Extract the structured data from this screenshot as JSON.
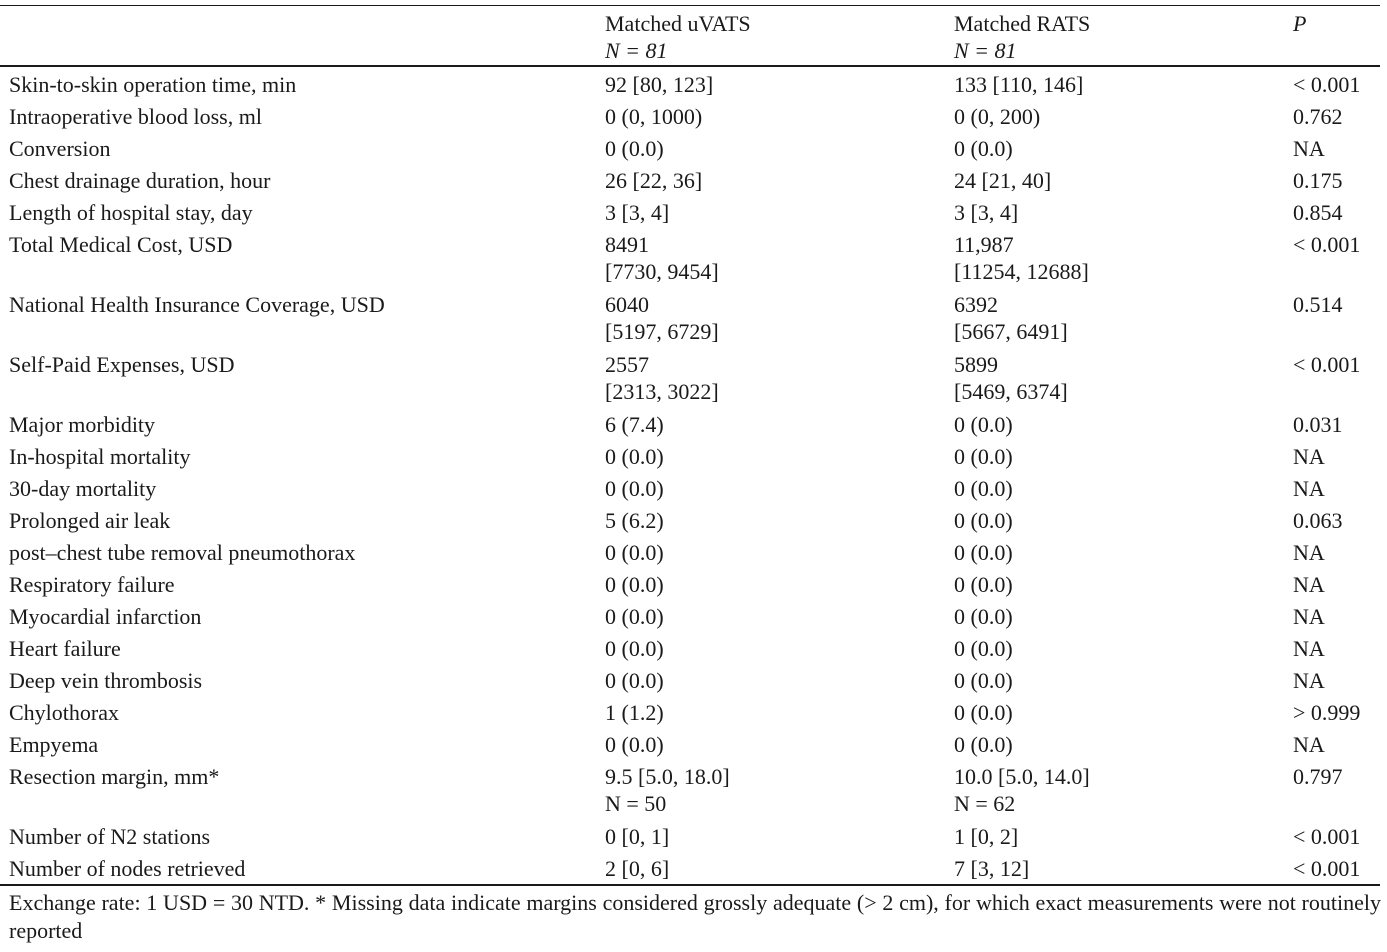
{
  "table": {
    "header": {
      "col2_title": "Matched uVATS",
      "col2_n": "N = 81",
      "col3_title": "Matched RATS",
      "col3_n": "N = 81",
      "col4_title": "P"
    },
    "rows": [
      {
        "label": "Skin-to-skin operation time, min",
        "v1": [
          "92 [80, 123]"
        ],
        "v2": [
          "133 [110, 146]"
        ],
        "p": "< 0.001"
      },
      {
        "label": "Intraoperative blood loss, ml",
        "v1": [
          "0 (0, 1000)"
        ],
        "v2": [
          "0 (0, 200)"
        ],
        "p": "0.762"
      },
      {
        "label": "Conversion",
        "v1": [
          "0 (0.0)"
        ],
        "v2": [
          "0 (0.0)"
        ],
        "p": "NA"
      },
      {
        "label": "Chest drainage duration, hour",
        "v1": [
          "26 [22, 36]"
        ],
        "v2": [
          "24 [21, 40]"
        ],
        "p": "0.175"
      },
      {
        "label": "Length of hospital stay, day",
        "v1": [
          "3 [3, 4]"
        ],
        "v2": [
          "3 [3, 4]"
        ],
        "p": "0.854"
      },
      {
        "label": "Total Medical Cost, USD",
        "v1": [
          "8491",
          "[7730, 9454]"
        ],
        "v2": [
          "11,987",
          "[11254, 12688]"
        ],
        "p": "< 0.001"
      },
      {
        "label": "National Health Insurance Coverage, USD",
        "v1": [
          "6040",
          "[5197, 6729]"
        ],
        "v2": [
          "6392",
          "[5667, 6491]"
        ],
        "p": "0.514"
      },
      {
        "label": "Self-Paid Expenses, USD",
        "v1": [
          "2557",
          "[2313, 3022]"
        ],
        "v2": [
          "5899",
          "[5469, 6374]"
        ],
        "p": "< 0.001"
      },
      {
        "label": "Major morbidity",
        "v1": [
          "6 (7.4)"
        ],
        "v2": [
          "0 (0.0)"
        ],
        "p": "0.031"
      },
      {
        "label": "In-hospital mortality",
        "v1": [
          "0 (0.0)"
        ],
        "v2": [
          "0 (0.0)"
        ],
        "p": "NA"
      },
      {
        "label": "30-day mortality",
        "v1": [
          "0 (0.0)"
        ],
        "v2": [
          "0 (0.0)"
        ],
        "p": "NA"
      },
      {
        "label": "Prolonged air leak",
        "v1": [
          "5 (6.2)"
        ],
        "v2": [
          "0 (0.0)"
        ],
        "p": "0.063"
      },
      {
        "label": "post–chest tube removal pneumothorax",
        "v1": [
          "0 (0.0)"
        ],
        "v2": [
          "0 (0.0)"
        ],
        "p": "NA"
      },
      {
        "label": "Respiratory failure",
        "v1": [
          "0 (0.0)"
        ],
        "v2": [
          "0 (0.0)"
        ],
        "p": "NA"
      },
      {
        "label": "Myocardial infarction",
        "v1": [
          "0 (0.0)"
        ],
        "v2": [
          "0 (0.0)"
        ],
        "p": "NA"
      },
      {
        "label": "Heart failure",
        "v1": [
          "0 (0.0)"
        ],
        "v2": [
          "0 (0.0)"
        ],
        "p": "NA"
      },
      {
        "label": "Deep vein thrombosis",
        "v1": [
          "0 (0.0)"
        ],
        "v2": [
          "0 (0.0)"
        ],
        "p": "NA"
      },
      {
        "label": "Chylothorax",
        "v1": [
          "1 (1.2)"
        ],
        "v2": [
          "0 (0.0)"
        ],
        "p": "> 0.999"
      },
      {
        "label": "Empyema",
        "v1": [
          "0 (0.0)"
        ],
        "v2": [
          "0 (0.0)"
        ],
        "p": "NA"
      },
      {
        "label": "Resection margin, mm*",
        "v1": [
          "9.5 [5.0, 18.0]",
          "N = 50"
        ],
        "v2": [
          "10.0 [5.0, 14.0]",
          "N = 62"
        ],
        "p": "0.797"
      },
      {
        "label": "Number of N2 stations",
        "v1": [
          "0 [0, 1]"
        ],
        "v2": [
          "1 [0, 2]"
        ],
        "p": "< 0.001"
      },
      {
        "label": "Number of nodes retrieved",
        "v1": [
          "2 [0, 6]"
        ],
        "v2": [
          "7 [3, 12]"
        ],
        "p": "< 0.001"
      }
    ]
  },
  "footnote": "Exchange rate: 1 USD = 30 NTD. * Missing data indicate margins considered grossly adequate (> 2 cm), for which exact measurements were not routinely reported"
}
